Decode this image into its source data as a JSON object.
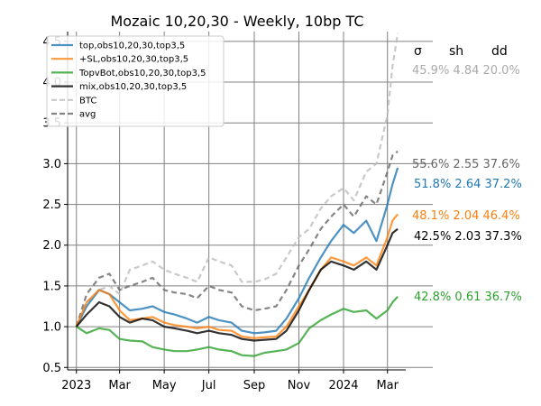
{
  "chart_data": {
    "type": "line",
    "title": "Mozaic 10,20,30 - Weekly, 10bp TC",
    "xlabel": "",
    "ylabel": "",
    "ylim": [
      0.47,
      4.62
    ],
    "x_range": [
      "2022-12-20",
      "2024-03-26"
    ],
    "grid": true,
    "legend_position": "upper left",
    "x_ticks": [
      {
        "date": "2023-01-01",
        "label": "2023"
      },
      {
        "date": "2023-03-01",
        "label": "Mar"
      },
      {
        "date": "2023-05-01",
        "label": "May"
      },
      {
        "date": "2023-07-01",
        "label": "Jul"
      },
      {
        "date": "2023-09-01",
        "label": "Sep"
      },
      {
        "date": "2023-11-01",
        "label": "Nov"
      },
      {
        "date": "2024-01-01",
        "label": "2024"
      },
      {
        "date": "2024-03-01",
        "label": "Mar"
      }
    ],
    "y_ticks": [
      0.5,
      1.0,
      1.5,
      2.0,
      2.5,
      3.0,
      3.5,
      4.0,
      4.5
    ],
    "y_tick_labels": [
      "0.5",
      "1.0",
      "1.5",
      "2.0",
      "2.5",
      "3.0",
      "3.5",
      "4.0",
      "4.5"
    ],
    "stats_header": {
      "sigma": "σ",
      "sharpe": "sh",
      "drawdown": "dd"
    },
    "series": [
      {
        "name": "top,obs10,20,30,top3,5",
        "color": "#1f77b4",
        "dash": "solid",
        "stats": "51.8% 2.64 37.2%",
        "x": [
          "2023-01-01",
          "2023-01-15",
          "2023-02-01",
          "2023-02-15",
          "2023-03-01",
          "2023-03-15",
          "2023-04-01",
          "2023-04-15",
          "2023-05-01",
          "2023-05-15",
          "2023-06-01",
          "2023-06-15",
          "2023-07-01",
          "2023-07-15",
          "2023-08-01",
          "2023-08-15",
          "2023-09-01",
          "2023-09-15",
          "2023-10-01",
          "2023-10-15",
          "2023-11-01",
          "2023-11-15",
          "2023-12-01",
          "2023-12-15",
          "2024-01-01",
          "2024-01-15",
          "2024-02-01",
          "2024-02-15",
          "2024-03-01",
          "2024-03-08",
          "2024-03-15"
        ],
        "y": [
          1.0,
          1.25,
          1.45,
          1.4,
          1.3,
          1.2,
          1.22,
          1.25,
          1.18,
          1.15,
          1.1,
          1.05,
          1.12,
          1.08,
          1.05,
          0.95,
          0.92,
          0.93,
          0.95,
          1.1,
          1.35,
          1.6,
          1.85,
          2.05,
          2.25,
          2.15,
          2.3,
          2.05,
          2.5,
          2.75,
          2.95
        ]
      },
      {
        "name": "+SL,obs10,20,30,top3,5",
        "color": "#ff7f0e",
        "dash": "solid",
        "stats": "48.1% 2.04 46.4%",
        "x": [
          "2023-01-01",
          "2023-01-15",
          "2023-02-01",
          "2023-02-15",
          "2023-03-01",
          "2023-03-15",
          "2023-04-01",
          "2023-04-15",
          "2023-05-01",
          "2023-05-15",
          "2023-06-01",
          "2023-06-15",
          "2023-07-01",
          "2023-07-15",
          "2023-08-01",
          "2023-08-15",
          "2023-09-01",
          "2023-09-15",
          "2023-10-01",
          "2023-10-15",
          "2023-11-01",
          "2023-11-15",
          "2023-12-01",
          "2023-12-15",
          "2024-01-01",
          "2024-01-15",
          "2024-02-01",
          "2024-02-15",
          "2024-03-01",
          "2024-03-08",
          "2024-03-15"
        ],
        "y": [
          1.0,
          1.3,
          1.45,
          1.4,
          1.2,
          1.08,
          1.1,
          1.12,
          1.05,
          1.02,
          1.0,
          0.98,
          1.0,
          0.96,
          0.95,
          0.88,
          0.86,
          0.87,
          0.88,
          1.0,
          1.25,
          1.45,
          1.7,
          1.85,
          1.8,
          1.75,
          1.85,
          1.75,
          2.1,
          2.3,
          2.38
        ]
      },
      {
        "name": "TopvBot,obs10,20,30,top3,5",
        "color": "#2ca02c",
        "dash": "solid",
        "stats": "42.8% 0.61 36.7%",
        "x": [
          "2023-01-01",
          "2023-01-15",
          "2023-02-01",
          "2023-02-15",
          "2023-03-01",
          "2023-03-15",
          "2023-04-01",
          "2023-04-15",
          "2023-05-01",
          "2023-05-15",
          "2023-06-01",
          "2023-06-15",
          "2023-07-01",
          "2023-07-15",
          "2023-08-01",
          "2023-08-15",
          "2023-09-01",
          "2023-09-15",
          "2023-10-01",
          "2023-10-15",
          "2023-11-01",
          "2023-11-15",
          "2023-12-01",
          "2023-12-15",
          "2024-01-01",
          "2024-01-15",
          "2024-02-01",
          "2024-02-15",
          "2024-03-01",
          "2024-03-08",
          "2024-03-15"
        ],
        "y": [
          1.0,
          0.92,
          0.98,
          0.96,
          0.85,
          0.83,
          0.82,
          0.75,
          0.72,
          0.7,
          0.7,
          0.72,
          0.75,
          0.72,
          0.7,
          0.65,
          0.64,
          0.68,
          0.7,
          0.72,
          0.8,
          0.98,
          1.08,
          1.15,
          1.22,
          1.18,
          1.2,
          1.1,
          1.2,
          1.3,
          1.37
        ]
      },
      {
        "name": "mix,obs10,20,30,top3,5",
        "color": "#000000",
        "dash": "solid",
        "stats": "42.5% 2.03 37.3%",
        "x": [
          "2023-01-01",
          "2023-01-15",
          "2023-02-01",
          "2023-02-15",
          "2023-03-01",
          "2023-03-15",
          "2023-04-01",
          "2023-04-15",
          "2023-05-01",
          "2023-05-15",
          "2023-06-01",
          "2023-06-15",
          "2023-07-01",
          "2023-07-15",
          "2023-08-01",
          "2023-08-15",
          "2023-09-01",
          "2023-09-15",
          "2023-10-01",
          "2023-10-15",
          "2023-11-01",
          "2023-11-15",
          "2023-12-01",
          "2023-12-15",
          "2024-01-01",
          "2024-01-15",
          "2024-02-01",
          "2024-02-15",
          "2024-03-01",
          "2024-03-08",
          "2024-03-15"
        ],
        "y": [
          1.0,
          1.15,
          1.3,
          1.25,
          1.12,
          1.05,
          1.1,
          1.08,
          1.0,
          0.98,
          0.95,
          0.92,
          0.95,
          0.92,
          0.9,
          0.85,
          0.83,
          0.84,
          0.85,
          0.95,
          1.2,
          1.45,
          1.7,
          1.8,
          1.75,
          1.7,
          1.8,
          1.7,
          2.0,
          2.15,
          2.2
        ]
      },
      {
        "name": "BTC",
        "color": "#bbbbbb",
        "dash": "dashed",
        "stats": "45.9% 4.84 20.0%",
        "x": [
          "2023-01-01",
          "2023-01-15",
          "2023-02-01",
          "2023-02-15",
          "2023-03-01",
          "2023-03-15",
          "2023-04-01",
          "2023-04-15",
          "2023-05-01",
          "2023-05-15",
          "2023-06-01",
          "2023-06-15",
          "2023-07-01",
          "2023-07-15",
          "2023-08-01",
          "2023-08-15",
          "2023-09-01",
          "2023-09-15",
          "2023-10-01",
          "2023-10-15",
          "2023-11-01",
          "2023-11-15",
          "2023-12-01",
          "2023-12-15",
          "2024-01-01",
          "2024-01-15",
          "2024-02-01",
          "2024-02-15",
          "2024-03-01",
          "2024-03-08",
          "2024-03-15"
        ],
        "y": [
          1.0,
          1.3,
          1.45,
          1.5,
          1.4,
          1.7,
          1.75,
          1.8,
          1.7,
          1.65,
          1.6,
          1.55,
          1.85,
          1.8,
          1.75,
          1.55,
          1.55,
          1.58,
          1.65,
          1.85,
          2.1,
          2.2,
          2.45,
          2.6,
          2.7,
          2.55,
          2.9,
          3.0,
          3.6,
          4.2,
          4.6
        ]
      },
      {
        "name": "avg",
        "color": "#666666",
        "dash": "dashed",
        "stats": "55.6% 2.55 37.6%",
        "x": [
          "2023-01-01",
          "2023-01-15",
          "2023-02-01",
          "2023-02-15",
          "2023-03-01",
          "2023-03-15",
          "2023-04-01",
          "2023-04-15",
          "2023-05-01",
          "2023-05-15",
          "2023-06-01",
          "2023-06-15",
          "2023-07-01",
          "2023-07-15",
          "2023-08-01",
          "2023-08-15",
          "2023-09-01",
          "2023-09-15",
          "2023-10-01",
          "2023-10-15",
          "2023-11-01",
          "2023-11-15",
          "2023-12-01",
          "2023-12-15",
          "2024-01-01",
          "2024-01-15",
          "2024-02-01",
          "2024-02-15",
          "2024-03-01",
          "2024-03-08",
          "2024-03-15"
        ],
        "y": [
          1.0,
          1.4,
          1.6,
          1.65,
          1.45,
          1.5,
          1.55,
          1.6,
          1.45,
          1.42,
          1.4,
          1.35,
          1.5,
          1.45,
          1.42,
          1.25,
          1.2,
          1.22,
          1.25,
          1.45,
          1.75,
          1.95,
          2.2,
          2.35,
          2.5,
          2.35,
          2.6,
          2.5,
          2.9,
          3.1,
          3.15
        ]
      }
    ]
  }
}
